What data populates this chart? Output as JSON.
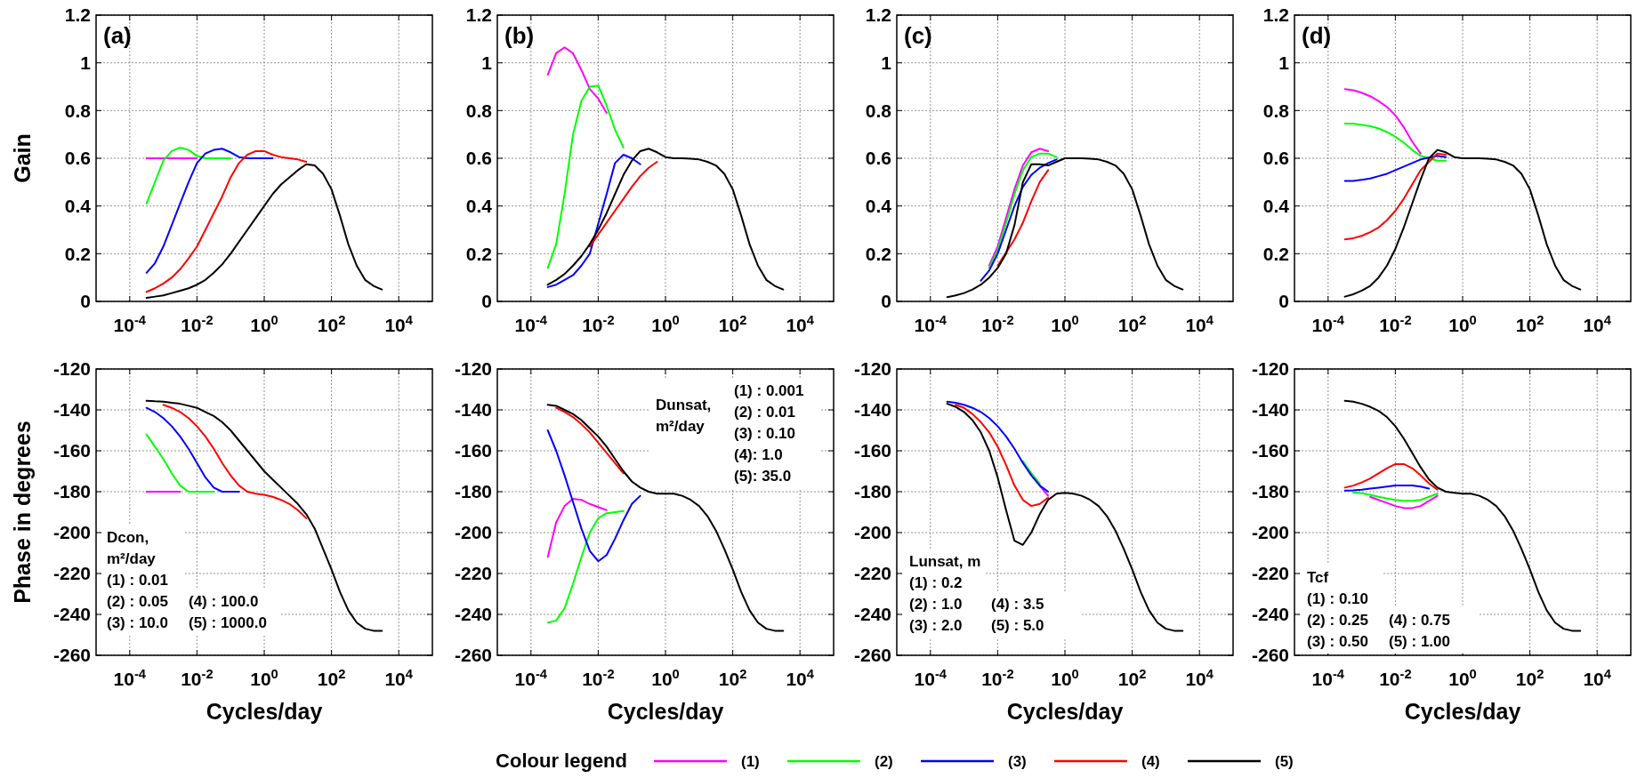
{
  "chart_data": [
    {
      "type": "line",
      "title": "(a)",
      "ylabel": "Gain",
      "log": "x",
      "grid": true,
      "xlim": [
        1e-05,
        100000
      ],
      "ylim": [
        0,
        1.2
      ],
      "xticks": [
        {
          "value": 0.0001,
          "label": "10$^{-4}$"
        },
        {
          "value": 0.01,
          "label": "10$^{-2}$"
        },
        {
          "value": 1,
          "label": "10$^{0}$"
        },
        {
          "value": 100,
          "label": "10$^{2}$"
        },
        {
          "value": 10000,
          "label": "10$^{4}$"
        }
      ],
      "yticks": [
        0,
        0.2,
        0.4,
        0.6,
        0.8,
        1,
        1.2
      ],
      "x": [
        0.000316,
        0.000562,
        0.001,
        0.00178,
        0.00316,
        0.00562,
        0.01,
        0.0178,
        0.0316,
        0.0562,
        0.1,
        0.178,
        0.316,
        0.562,
        1,
        1.78,
        3.16,
        5.62,
        10,
        17.8,
        31.6,
        56.2,
        100,
        178,
        316,
        562,
        1000,
        1780,
        3160
      ],
      "series": [
        {
          "color": "#ff00ff",
          "values": [
            0.6,
            0.6,
            0.6,
            0.6,
            0.6,
            0.6,
            0.6,
            null,
            null,
            null,
            null,
            null,
            null,
            null,
            null,
            null,
            null,
            null,
            null,
            null,
            null,
            null,
            null,
            null,
            null,
            null,
            null,
            null,
            null
          ]
        },
        {
          "color": "#00ff00",
          "values": [
            0.41,
            0.5,
            0.59,
            0.63,
            0.645,
            0.635,
            0.61,
            0.6,
            0.6,
            0.6,
            0.6,
            null,
            null,
            null,
            null,
            null,
            null,
            null,
            null,
            null,
            null,
            null,
            null,
            null,
            null,
            null,
            null,
            null,
            null
          ]
        },
        {
          "color": "#0000ff",
          "values": [
            0.12,
            0.16,
            0.23,
            0.32,
            0.41,
            0.5,
            0.58,
            0.62,
            0.635,
            0.64,
            0.625,
            0.605,
            0.6,
            0.6,
            0.6,
            0.6,
            null,
            null,
            null,
            null,
            null,
            null,
            null,
            null,
            null,
            null,
            null,
            null,
            null
          ]
        },
        {
          "color": "#ff0000",
          "values": [
            0.04,
            0.055,
            0.075,
            0.1,
            0.135,
            0.18,
            0.23,
            0.3,
            0.37,
            0.44,
            0.52,
            0.58,
            0.615,
            0.63,
            0.63,
            0.615,
            0.605,
            0.6,
            0.595,
            0.585,
            null,
            null,
            null,
            null,
            null,
            null,
            null,
            null,
            null
          ]
        },
        {
          "color": "#000000",
          "values": [
            0.015,
            0.02,
            0.025,
            0.035,
            0.045,
            0.055,
            0.07,
            0.09,
            0.12,
            0.155,
            0.2,
            0.25,
            0.3,
            0.35,
            0.4,
            0.45,
            0.49,
            0.52,
            0.55,
            0.575,
            0.57,
            0.535,
            0.47,
            0.36,
            0.24,
            0.15,
            0.09,
            0.065,
            0.05
          ]
        }
      ]
    },
    {
      "type": "line",
      "title": "(b)",
      "log": "x",
      "grid": true,
      "xlim": [
        1e-05,
        100000
      ],
      "ylim": [
        0,
        1.2
      ],
      "xticks": [
        {
          "value": 0.0001,
          "label": "10$^{-4}$"
        },
        {
          "value": 0.01,
          "label": "10$^{-2}$"
        },
        {
          "value": 1,
          "label": "10$^{0}$"
        },
        {
          "value": 100,
          "label": "10$^{2}$"
        },
        {
          "value": 10000,
          "label": "10$^{4}$"
        }
      ],
      "yticks": [
        0,
        0.2,
        0.4,
        0.6,
        0.8,
        1,
        1.2
      ],
      "x": [
        0.000316,
        0.000562,
        0.001,
        0.00178,
        0.00316,
        0.00562,
        0.01,
        0.0178,
        0.0316,
        0.0562,
        0.1,
        0.178,
        0.316,
        0.562,
        1,
        1.78,
        3.16,
        5.62,
        10,
        17.8,
        31.6,
        56.2,
        100,
        178,
        316,
        562,
        1000,
        1780,
        3160
      ],
      "series": [
        {
          "color": "#ff00ff",
          "values": [
            0.95,
            1.04,
            1.065,
            1.04,
            0.97,
            0.89,
            0.85,
            0.79,
            null,
            null,
            null,
            null,
            null,
            null,
            null,
            null,
            null,
            null,
            null,
            null,
            null,
            null,
            null,
            null,
            null,
            null,
            null,
            null,
            null
          ]
        },
        {
          "color": "#00ff00",
          "values": [
            0.14,
            0.24,
            0.45,
            0.7,
            0.84,
            0.9,
            0.905,
            0.82,
            0.72,
            0.645,
            null,
            null,
            null,
            null,
            null,
            null,
            null,
            null,
            null,
            null,
            null,
            null,
            null,
            null,
            null,
            null,
            null,
            null,
            null
          ]
        },
        {
          "color": "#0000ff",
          "values": [
            0.06,
            0.07,
            0.09,
            0.11,
            0.15,
            0.2,
            null,
            0.45,
            0.58,
            0.615,
            0.6,
            0.575,
            null,
            null,
            null,
            null,
            null,
            null,
            null,
            null,
            null,
            null,
            null,
            null,
            null,
            null,
            null,
            null,
            null
          ]
        },
        {
          "color": "#ff0000",
          "values": [
            null,
            null,
            null,
            null,
            null,
            0.23,
            0.28,
            0.33,
            0.38,
            0.43,
            0.48,
            0.525,
            0.56,
            0.585,
            null,
            null,
            null,
            null,
            null,
            null,
            null,
            null,
            null,
            null,
            null,
            null,
            null,
            null,
            null
          ]
        },
        {
          "color": "#000000",
          "values": [
            0.07,
            0.09,
            0.115,
            0.15,
            0.19,
            0.24,
            0.3,
            0.37,
            0.45,
            0.53,
            0.59,
            0.63,
            0.64,
            0.625,
            0.605,
            0.6,
            0.6,
            0.598,
            0.595,
            0.585,
            0.57,
            0.535,
            0.47,
            0.36,
            0.24,
            0.15,
            0.09,
            0.065,
            0.05
          ]
        }
      ]
    },
    {
      "type": "line",
      "title": "(c)",
      "log": "x",
      "grid": true,
      "xlim": [
        1e-05,
        100000
      ],
      "ylim": [
        0,
        1.2
      ],
      "xticks": [
        {
          "value": 0.0001,
          "label": "10$^{-4}$"
        },
        {
          "value": 0.01,
          "label": "10$^{-2}$"
        },
        {
          "value": 1,
          "label": "10$^{0}$"
        },
        {
          "value": 100,
          "label": "10$^{2}$"
        },
        {
          "value": 10000,
          "label": "10$^{4}$"
        }
      ],
      "yticks": [
        0,
        0.2,
        0.4,
        0.6,
        0.8,
        1,
        1.2
      ],
      "x": [
        0.000316,
        0.000562,
        0.001,
        0.00178,
        0.00316,
        0.00562,
        0.01,
        0.0178,
        0.0316,
        0.0562,
        0.1,
        0.178,
        0.316,
        0.562,
        1,
        1.78,
        3.16,
        5.62,
        10,
        17.8,
        31.6,
        56.2,
        100,
        178,
        316,
        562,
        1000,
        1780,
        3160
      ],
      "series": [
        {
          "color": "#ff00ff",
          "values": [
            null,
            null,
            null,
            null,
            null,
            0.15,
            0.23,
            0.35,
            0.47,
            0.57,
            0.625,
            0.64,
            0.63,
            null,
            null,
            null,
            null,
            null,
            null,
            null,
            null,
            null,
            null,
            null,
            null,
            null,
            null,
            null,
            null
          ]
        },
        {
          "color": "#00ff00",
          "values": [
            null,
            null,
            null,
            null,
            null,
            0.14,
            0.215,
            0.33,
            0.45,
            0.55,
            0.605,
            0.62,
            0.62,
            0.605,
            null,
            null,
            null,
            null,
            null,
            null,
            null,
            null,
            null,
            null,
            null,
            null,
            null,
            null,
            null
          ]
        },
        {
          "color": "#0000ff",
          "values": [
            null,
            null,
            null,
            null,
            0.087,
            0.13,
            0.2,
            0.3,
            0.4,
            0.48,
            0.53,
            0.56,
            0.58,
            0.595,
            null,
            null,
            null,
            null,
            null,
            null,
            null,
            null,
            null,
            null,
            null,
            null,
            null,
            null,
            null
          ]
        },
        {
          "color": "#ff0000",
          "values": [
            null,
            null,
            null,
            null,
            null,
            null,
            0.15,
            null,
            0.26,
            0.33,
            0.42,
            0.5,
            0.55,
            null,
            null,
            null,
            null,
            null,
            null,
            null,
            null,
            null,
            null,
            null,
            null,
            null,
            null,
            null,
            null
          ]
        },
        {
          "color": "#000000",
          "values": [
            0.018,
            0.025,
            0.035,
            0.05,
            0.07,
            0.1,
            0.14,
            0.2,
            0.32,
            0.5,
            0.575,
            0.575,
            0.57,
            0.585,
            0.6,
            0.6,
            0.6,
            0.598,
            0.595,
            0.585,
            0.57,
            0.535,
            0.47,
            0.36,
            0.24,
            0.15,
            0.09,
            0.065,
            0.05
          ]
        }
      ]
    },
    {
      "type": "line",
      "title": "(d)",
      "log": "x",
      "grid": true,
      "xlim": [
        1e-05,
        100000
      ],
      "ylim": [
        0,
        1.2
      ],
      "xticks": [
        {
          "value": 0.0001,
          "label": "10$^{-4}$"
        },
        {
          "value": 0.01,
          "label": "10$^{-2}$"
        },
        {
          "value": 1,
          "label": "10$^{0}$"
        },
        {
          "value": 100,
          "label": "10$^{2}$"
        },
        {
          "value": 10000,
          "label": "10$^{4}$"
        }
      ],
      "yticks": [
        0,
        0.2,
        0.4,
        0.6,
        0.8,
        1,
        1.2
      ],
      "x": [
        0.000316,
        0.000562,
        0.001,
        0.00178,
        0.00316,
        0.00562,
        0.01,
        0.0178,
        0.0316,
        0.0562,
        0.1,
        0.178,
        0.316,
        0.562,
        1,
        1.78,
        3.16,
        5.62,
        10,
        17.8,
        31.6,
        56.2,
        100,
        178,
        316,
        562,
        1000,
        1780,
        3160
      ],
      "series": [
        {
          "color": "#ff00ff",
          "values": [
            0.89,
            0.885,
            0.875,
            0.86,
            0.84,
            0.815,
            0.78,
            0.73,
            0.67,
            0.62,
            null,
            null,
            null,
            null,
            null,
            null,
            null,
            null,
            null,
            null,
            null,
            null,
            null,
            null,
            null,
            null,
            null,
            null,
            null
          ]
        },
        {
          "color": "#00ff00",
          "values": [
            0.745,
            0.745,
            0.74,
            0.735,
            0.725,
            0.71,
            0.69,
            0.665,
            0.635,
            0.61,
            null,
            0.59,
            0.59,
            null,
            null,
            null,
            null,
            null,
            null,
            null,
            null,
            null,
            null,
            null,
            null,
            null,
            null,
            null,
            null
          ]
        },
        {
          "color": "#0000ff",
          "values": [
            0.505,
            0.505,
            0.51,
            0.515,
            0.525,
            0.535,
            0.55,
            0.565,
            0.58,
            0.595,
            null,
            0.61,
            0.605,
            null,
            null,
            null,
            null,
            null,
            null,
            null,
            null,
            null,
            null,
            null,
            null,
            null,
            null,
            null,
            null
          ]
        },
        {
          "color": "#ff0000",
          "values": [
            0.26,
            0.265,
            0.275,
            0.29,
            0.31,
            0.34,
            0.38,
            0.43,
            0.49,
            0.55,
            null,
            0.62,
            0.615,
            null,
            null,
            null,
            null,
            null,
            null,
            null,
            null,
            null,
            null,
            null,
            null,
            null,
            null,
            null,
            null
          ]
        },
        {
          "color": "#000000",
          "values": [
            0.02,
            0.03,
            0.045,
            0.065,
            0.1,
            0.15,
            0.22,
            0.31,
            0.41,
            0.51,
            0.6,
            0.635,
            0.625,
            0.605,
            0.6,
            0.6,
            0.6,
            0.598,
            0.595,
            0.585,
            0.57,
            0.535,
            0.47,
            0.36,
            0.24,
            0.15,
            0.09,
            0.065,
            0.05
          ]
        }
      ]
    },
    {
      "type": "line",
      "ylabel": "Phase in degrees",
      "xlabel": "Cycles/day",
      "log": "x",
      "grid": true,
      "xlim": [
        1e-05,
        100000
      ],
      "ylim": [
        -260,
        -120
      ],
      "xticks": [
        {
          "value": 0.0001,
          "label": "10$^{-4}$"
        },
        {
          "value": 0.01,
          "label": "10$^{-2}$"
        },
        {
          "value": 1,
          "label": "10$^{0}$"
        },
        {
          "value": 100,
          "label": "10$^{2}$"
        },
        {
          "value": 10000,
          "label": "10$^{4}$"
        }
      ],
      "yticks": [
        -260,
        -240,
        -220,
        -200,
        -180,
        -160,
        -140,
        -120
      ],
      "annotations": [
        "Dcon,",
        "m²/day",
        "(1) : 0.01",
        "(2) : 0.05",
        "(3) : 10.0",
        "(4) : 100.0",
        "(5) : 1000.0"
      ],
      "x": [
        0.000316,
        0.000562,
        0.001,
        0.00178,
        0.00316,
        0.00562,
        0.01,
        0.0178,
        0.0316,
        0.0562,
        0.1,
        0.178,
        0.316,
        0.562,
        1,
        1.78,
        3.16,
        5.62,
        10,
        17.8,
        31.6,
        56.2,
        100,
        178,
        316,
        562,
        1000,
        1780,
        3160
      ],
      "series": [
        {
          "color": "#ff00ff",
          "values": [
            -180,
            -180,
            -180,
            -180,
            -180,
            null,
            null,
            null,
            null,
            null,
            null,
            null,
            null,
            null,
            null,
            null,
            null,
            null,
            null,
            null,
            null,
            null,
            null,
            null,
            null,
            null,
            null,
            null,
            null
          ]
        },
        {
          "color": "#00ff00",
          "values": [
            -152,
            -158,
            -164,
            -171,
            -177,
            -180,
            -180,
            -180,
            -180,
            null,
            null,
            null,
            null,
            null,
            null,
            null,
            null,
            null,
            null,
            null,
            null,
            null,
            null,
            null,
            null,
            null,
            null,
            null,
            null
          ]
        },
        {
          "color": "#0000ff",
          "values": [
            -139,
            -141,
            -144,
            -148,
            -153,
            -159,
            -166,
            -173,
            -178,
            -180,
            -180,
            -180,
            null,
            null,
            null,
            null,
            null,
            null,
            null,
            null,
            null,
            null,
            null,
            null,
            null,
            null,
            null,
            null,
            null
          ]
        },
        {
          "color": "#ff0000",
          "values": [
            null,
            null,
            -137.5,
            -139,
            -141,
            -144,
            -148,
            -153,
            -159,
            -166,
            -172,
            -177,
            -180,
            -181,
            -181.5,
            -182.5,
            -184,
            -186,
            -189,
            -193,
            null,
            null,
            null,
            null,
            null,
            null,
            null,
            null,
            null
          ]
        },
        {
          "color": "#000000",
          "values": [
            -135.5,
            -135.8,
            -136,
            -136.5,
            -137,
            -138,
            -139,
            -141,
            -143,
            -146,
            -150,
            -155,
            -160,
            -165,
            -170,
            -174,
            -178,
            -182,
            -186,
            -191,
            -198,
            -208,
            -218,
            -229,
            -238,
            -244,
            -247,
            -248,
            -248
          ]
        }
      ]
    },
    {
      "type": "line",
      "xlabel": "Cycles/day",
      "log": "x",
      "grid": true,
      "xlim": [
        1e-05,
        100000
      ],
      "ylim": [
        -260,
        -120
      ],
      "xticks": [
        {
          "value": 0.0001,
          "label": "10$^{-4}$"
        },
        {
          "value": 0.01,
          "label": "10$^{-2}$"
        },
        {
          "value": 1,
          "label": "10$^{0}$"
        },
        {
          "value": 100,
          "label": "10$^{2}$"
        },
        {
          "value": 10000,
          "label": "10$^{4}$"
        }
      ],
      "yticks": [
        -260,
        -240,
        -220,
        -200,
        -180,
        -160,
        -140,
        -120
      ],
      "annotations": [
        "Dunsat,",
        "m²/day",
        "(1) : 0.001",
        "(2) : 0.01",
        "(3) : 0.10",
        "(4): 1.0",
        "(5): 35.0"
      ],
      "x": [
        0.000316,
        0.000562,
        0.001,
        0.00178,
        0.00316,
        0.00562,
        0.01,
        0.0178,
        0.0316,
        0.0562,
        0.1,
        0.178,
        0.316,
        0.562,
        1,
        1.78,
        3.16,
        5.62,
        10,
        17.8,
        31.6,
        56.2,
        100,
        178,
        316,
        562,
        1000,
        1780,
        3160
      ],
      "series": [
        {
          "color": "#ff00ff",
          "values": [
            -212,
            -195,
            -187,
            -183.5,
            -184,
            -186,
            -187.5,
            -189,
            null,
            null,
            null,
            null,
            null,
            null,
            null,
            null,
            null,
            null,
            null,
            null,
            null,
            null,
            null,
            null,
            null,
            null,
            null,
            null,
            null
          ]
        },
        {
          "color": "#00ff00",
          "values": [
            -244,
            -243,
            -237,
            -225,
            -212,
            -200,
            -193,
            -190.5,
            -190,
            -189.5,
            null,
            null,
            null,
            null,
            null,
            null,
            null,
            null,
            null,
            null,
            null,
            null,
            null,
            null,
            null,
            null,
            null,
            null,
            null
          ]
        },
        {
          "color": "#0000ff",
          "values": [
            -150,
            -160,
            -172,
            -185,
            -198,
            -209,
            -214,
            -211,
            -203,
            -194,
            -186,
            -182,
            null,
            null,
            null,
            null,
            null,
            null,
            null,
            null,
            null,
            null,
            null,
            null,
            null,
            null,
            null,
            null,
            null
          ]
        },
        {
          "color": "#ff0000",
          "values": [
            null,
            -139,
            -141,
            -143.5,
            -147,
            -151,
            -156,
            -161,
            -166,
            -171,
            null,
            null,
            null,
            null,
            null,
            null,
            null,
            null,
            null,
            null,
            null,
            null,
            null,
            null,
            null,
            null,
            null,
            null,
            null
          ]
        },
        {
          "color": "#000000",
          "values": [
            -137.5,
            -138,
            -140,
            -142,
            -145,
            -149,
            -153,
            -158,
            -164,
            -170,
            -175,
            -178,
            -180,
            -181,
            -181,
            -181,
            -182,
            -184,
            -187,
            -192,
            -199,
            -208,
            -218,
            -229,
            -238,
            -244,
            -247,
            -248,
            -248
          ]
        }
      ]
    },
    {
      "type": "line",
      "xlabel": "Cycles/day",
      "log": "x",
      "grid": true,
      "xlim": [
        1e-05,
        100000
      ],
      "ylim": [
        -260,
        -120
      ],
      "xticks": [
        {
          "value": 0.0001,
          "label": "10$^{-4}$"
        },
        {
          "value": 0.01,
          "label": "10$^{-2}$"
        },
        {
          "value": 1,
          "label": "10$^{0}$"
        },
        {
          "value": 100,
          "label": "10$^{2}$"
        },
        {
          "value": 10000,
          "label": "10$^{4}$"
        }
      ],
      "yticks": [
        -260,
        -240,
        -220,
        -200,
        -180,
        -160,
        -140,
        -120
      ],
      "annotations": [
        "Lunsat, m",
        "(1) : 0.2",
        "(2) : 1.0",
        "(3) : 2.0",
        "(4) : 3.5",
        "(5) : 5.0"
      ],
      "x": [
        0.000316,
        0.000562,
        0.001,
        0.00178,
        0.00316,
        0.00562,
        0.01,
        0.0178,
        0.0316,
        0.0562,
        0.1,
        0.178,
        0.316,
        0.562,
        1,
        1.78,
        3.16,
        5.62,
        10,
        17.8,
        31.6,
        56.2,
        100,
        178,
        316,
        562,
        1000,
        1780,
        3160
      ],
      "series": [
        {
          "color": "#ff00ff",
          "values": [
            null,
            null,
            null,
            null,
            null,
            null,
            null,
            null,
            null,
            null,
            null,
            -177,
            -182,
            null,
            null,
            null,
            null,
            null,
            null,
            null,
            null,
            null,
            null,
            null,
            null,
            null,
            null,
            null,
            null
          ]
        },
        {
          "color": "#00ff00",
          "values": [
            null,
            null,
            null,
            null,
            null,
            null,
            null,
            null,
            null,
            -165,
            -171,
            -176,
            null,
            null,
            null,
            null,
            null,
            null,
            null,
            null,
            null,
            null,
            null,
            null,
            null,
            null,
            null,
            null,
            null
          ]
        },
        {
          "color": "#0000ff",
          "values": [
            -136,
            -136.5,
            -137.5,
            -139,
            -141,
            -144,
            -148,
            -153,
            -159,
            -166,
            -172,
            -177,
            -180,
            null,
            null,
            null,
            null,
            null,
            null,
            null,
            null,
            null,
            null,
            null,
            null,
            null,
            null,
            null,
            null
          ]
        },
        {
          "color": "#ff0000",
          "values": [
            null,
            -137.5,
            -139,
            -142,
            -146,
            -151,
            -158,
            -167,
            -177,
            -184,
            -187,
            -186,
            -183,
            null,
            null,
            null,
            null,
            null,
            null,
            null,
            null,
            null,
            null,
            null,
            null,
            null,
            null,
            null,
            null
          ]
        },
        {
          "color": "#000000",
          "values": [
            -137,
            -138.5,
            -141,
            -145,
            -151,
            -160,
            -173,
            -189,
            -204,
            -206,
            -200,
            -191,
            -184,
            -181,
            -180.5,
            -181,
            -182,
            -184,
            -187,
            -192,
            -199,
            -208,
            -218,
            -229,
            -238,
            -244,
            -247,
            -248,
            -248
          ]
        }
      ]
    },
    {
      "type": "line",
      "xlabel": "Cycles/day",
      "log": "x",
      "grid": true,
      "legend": "bottom",
      "legend_title": "Colour legend",
      "xlim": [
        1e-05,
        100000
      ],
      "ylim": [
        -260,
        -120
      ],
      "xticks": [
        {
          "value": 0.0001,
          "label": "10$^{-4}$"
        },
        {
          "value": 0.01,
          "label": "10$^{-2}$"
        },
        {
          "value": 1,
          "label": "10$^{0}$"
        },
        {
          "value": 100,
          "label": "10$^{2}$"
        },
        {
          "value": 10000,
          "label": "10$^{4}$"
        }
      ],
      "yticks": [
        -260,
        -240,
        -220,
        -200,
        -180,
        -160,
        -140,
        -120
      ],
      "annotations": [
        "Tcf",
        "(1) : 0.10",
        "(2) : 0.25",
        "(3) : 0.50",
        "(4) : 0.75",
        "(5) : 1.00"
      ],
      "x": [
        0.000316,
        0.000562,
        0.001,
        0.00178,
        0.00316,
        0.00562,
        0.01,
        0.0178,
        0.0316,
        0.0562,
        0.1,
        0.178,
        0.316,
        0.562,
        1,
        1.78,
        3.16,
        5.62,
        10,
        17.8,
        31.6,
        56.2,
        100,
        178,
        316,
        562,
        1000,
        1780,
        3160
      ],
      "series": [
        {
          "name": "(1)",
          "color": "#ff00ff",
          "values": [
            null,
            null,
            null,
            -182.5,
            -184,
            -185.5,
            -187,
            -188,
            -188,
            -187,
            -184.5,
            -182,
            null,
            null,
            null,
            null,
            null,
            null,
            null,
            null,
            null,
            null,
            null,
            null,
            null,
            null,
            null,
            null,
            null
          ]
        },
        {
          "name": "(2)",
          "color": "#00ff00",
          "values": [
            null,
            -180.3,
            -180.8,
            -181.5,
            -182.5,
            -183.3,
            -184,
            -184.5,
            -184.5,
            -184,
            -182.5,
            -181,
            null,
            null,
            null,
            null,
            null,
            null,
            null,
            null,
            null,
            null,
            null,
            null,
            null,
            null,
            null,
            null,
            null
          ]
        },
        {
          "name": "(3)",
          "color": "#0000ff",
          "values": [
            -179.5,
            -179.3,
            -179,
            -178.5,
            -178,
            -177.5,
            -177,
            -177,
            -177,
            -177.5,
            -178.5,
            null,
            null,
            null,
            null,
            null,
            null,
            null,
            null,
            null,
            null,
            null,
            null,
            null,
            null,
            null,
            null,
            null,
            null
          ]
        },
        {
          "name": "(4)",
          "color": "#ff0000",
          "values": [
            -178,
            -177,
            -175.5,
            -173.5,
            -171,
            -168.5,
            -166.5,
            -166.5,
            -168.5,
            -172,
            -176,
            -179,
            null,
            null,
            null,
            null,
            null,
            null,
            null,
            null,
            null,
            null,
            null,
            null,
            null,
            null,
            null,
            null,
            null
          ]
        },
        {
          "name": "(5)",
          "color": "#000000",
          "values": [
            -135.5,
            -136,
            -137,
            -138.5,
            -140.5,
            -143.5,
            -148,
            -154,
            -161,
            -168,
            -174,
            -178,
            -180,
            -180.5,
            -181,
            -181,
            -182,
            -184,
            -187,
            -192,
            -199,
            -208,
            -218,
            -229,
            -238,
            -244,
            -247,
            -248,
            -248
          ]
        }
      ]
    }
  ]
}
